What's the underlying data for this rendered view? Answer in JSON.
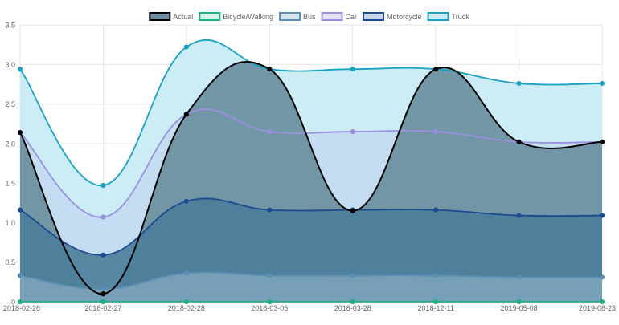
{
  "chart_data": {
    "type": "area",
    "categories": [
      "2018-02-26",
      "2018-02-27",
      "2018-02-28",
      "2018-03-05",
      "2018-03-28",
      "2018-12-11",
      "2019-05-08",
      "2019-08-23"
    ],
    "ylim": [
      0,
      3.5
    ],
    "yticks": [
      "0",
      "0.5",
      "1.0",
      "1.5",
      "2.0",
      "2.5",
      "3.0",
      "3.5"
    ],
    "ytick_values": [
      0,
      0.5,
      1.0,
      1.5,
      2.0,
      2.5,
      3.0,
      3.5
    ],
    "grid": true,
    "legend_position": "top",
    "series": [
      {
        "name": "Actual",
        "values": [
          2.14,
          0.1,
          2.37,
          2.94,
          1.15,
          2.94,
          2.02,
          2.02
        ],
        "line_color": "#000000",
        "fill_color": "#6a8f9e",
        "legend_fill": "#6a8f9e"
      },
      {
        "name": "Bicycle/Walking",
        "values": [
          0,
          0,
          0,
          0,
          0,
          0,
          0,
          0
        ],
        "line_color": "#20b080",
        "fill_color": "#d8f3ea",
        "legend_fill": "#d8f3ea"
      },
      {
        "name": "Bus",
        "values": [
          0.33,
          0.16,
          0.36,
          0.33,
          0.33,
          0.33,
          0.31,
          0.31
        ],
        "line_color": "#5a8fb3",
        "fill_color": "#a8c6dc",
        "legend_fill": "#d6e4ef"
      },
      {
        "name": "Car",
        "values": [
          2.14,
          1.07,
          2.37,
          2.15,
          2.15,
          2.15,
          2.02,
          2.02
        ],
        "line_color": "#9a8fe0",
        "fill_color": "#c4ddf2",
        "legend_fill": "#e6e2fa"
      },
      {
        "name": "Motorcycle",
        "values": [
          1.16,
          0.59,
          1.27,
          1.16,
          1.16,
          1.16,
          1.09,
          1.09
        ],
        "line_color": "#1c4a90",
        "fill_color": "#4b7d9a",
        "legend_fill": "#c8d6ec"
      },
      {
        "name": "Truck",
        "values": [
          2.94,
          1.47,
          3.22,
          2.94,
          2.94,
          2.94,
          2.76,
          2.76
        ],
        "line_color": "#1aa2c2",
        "fill_color": "#ccedf5",
        "legend_fill": "#ccedf5"
      }
    ]
  }
}
